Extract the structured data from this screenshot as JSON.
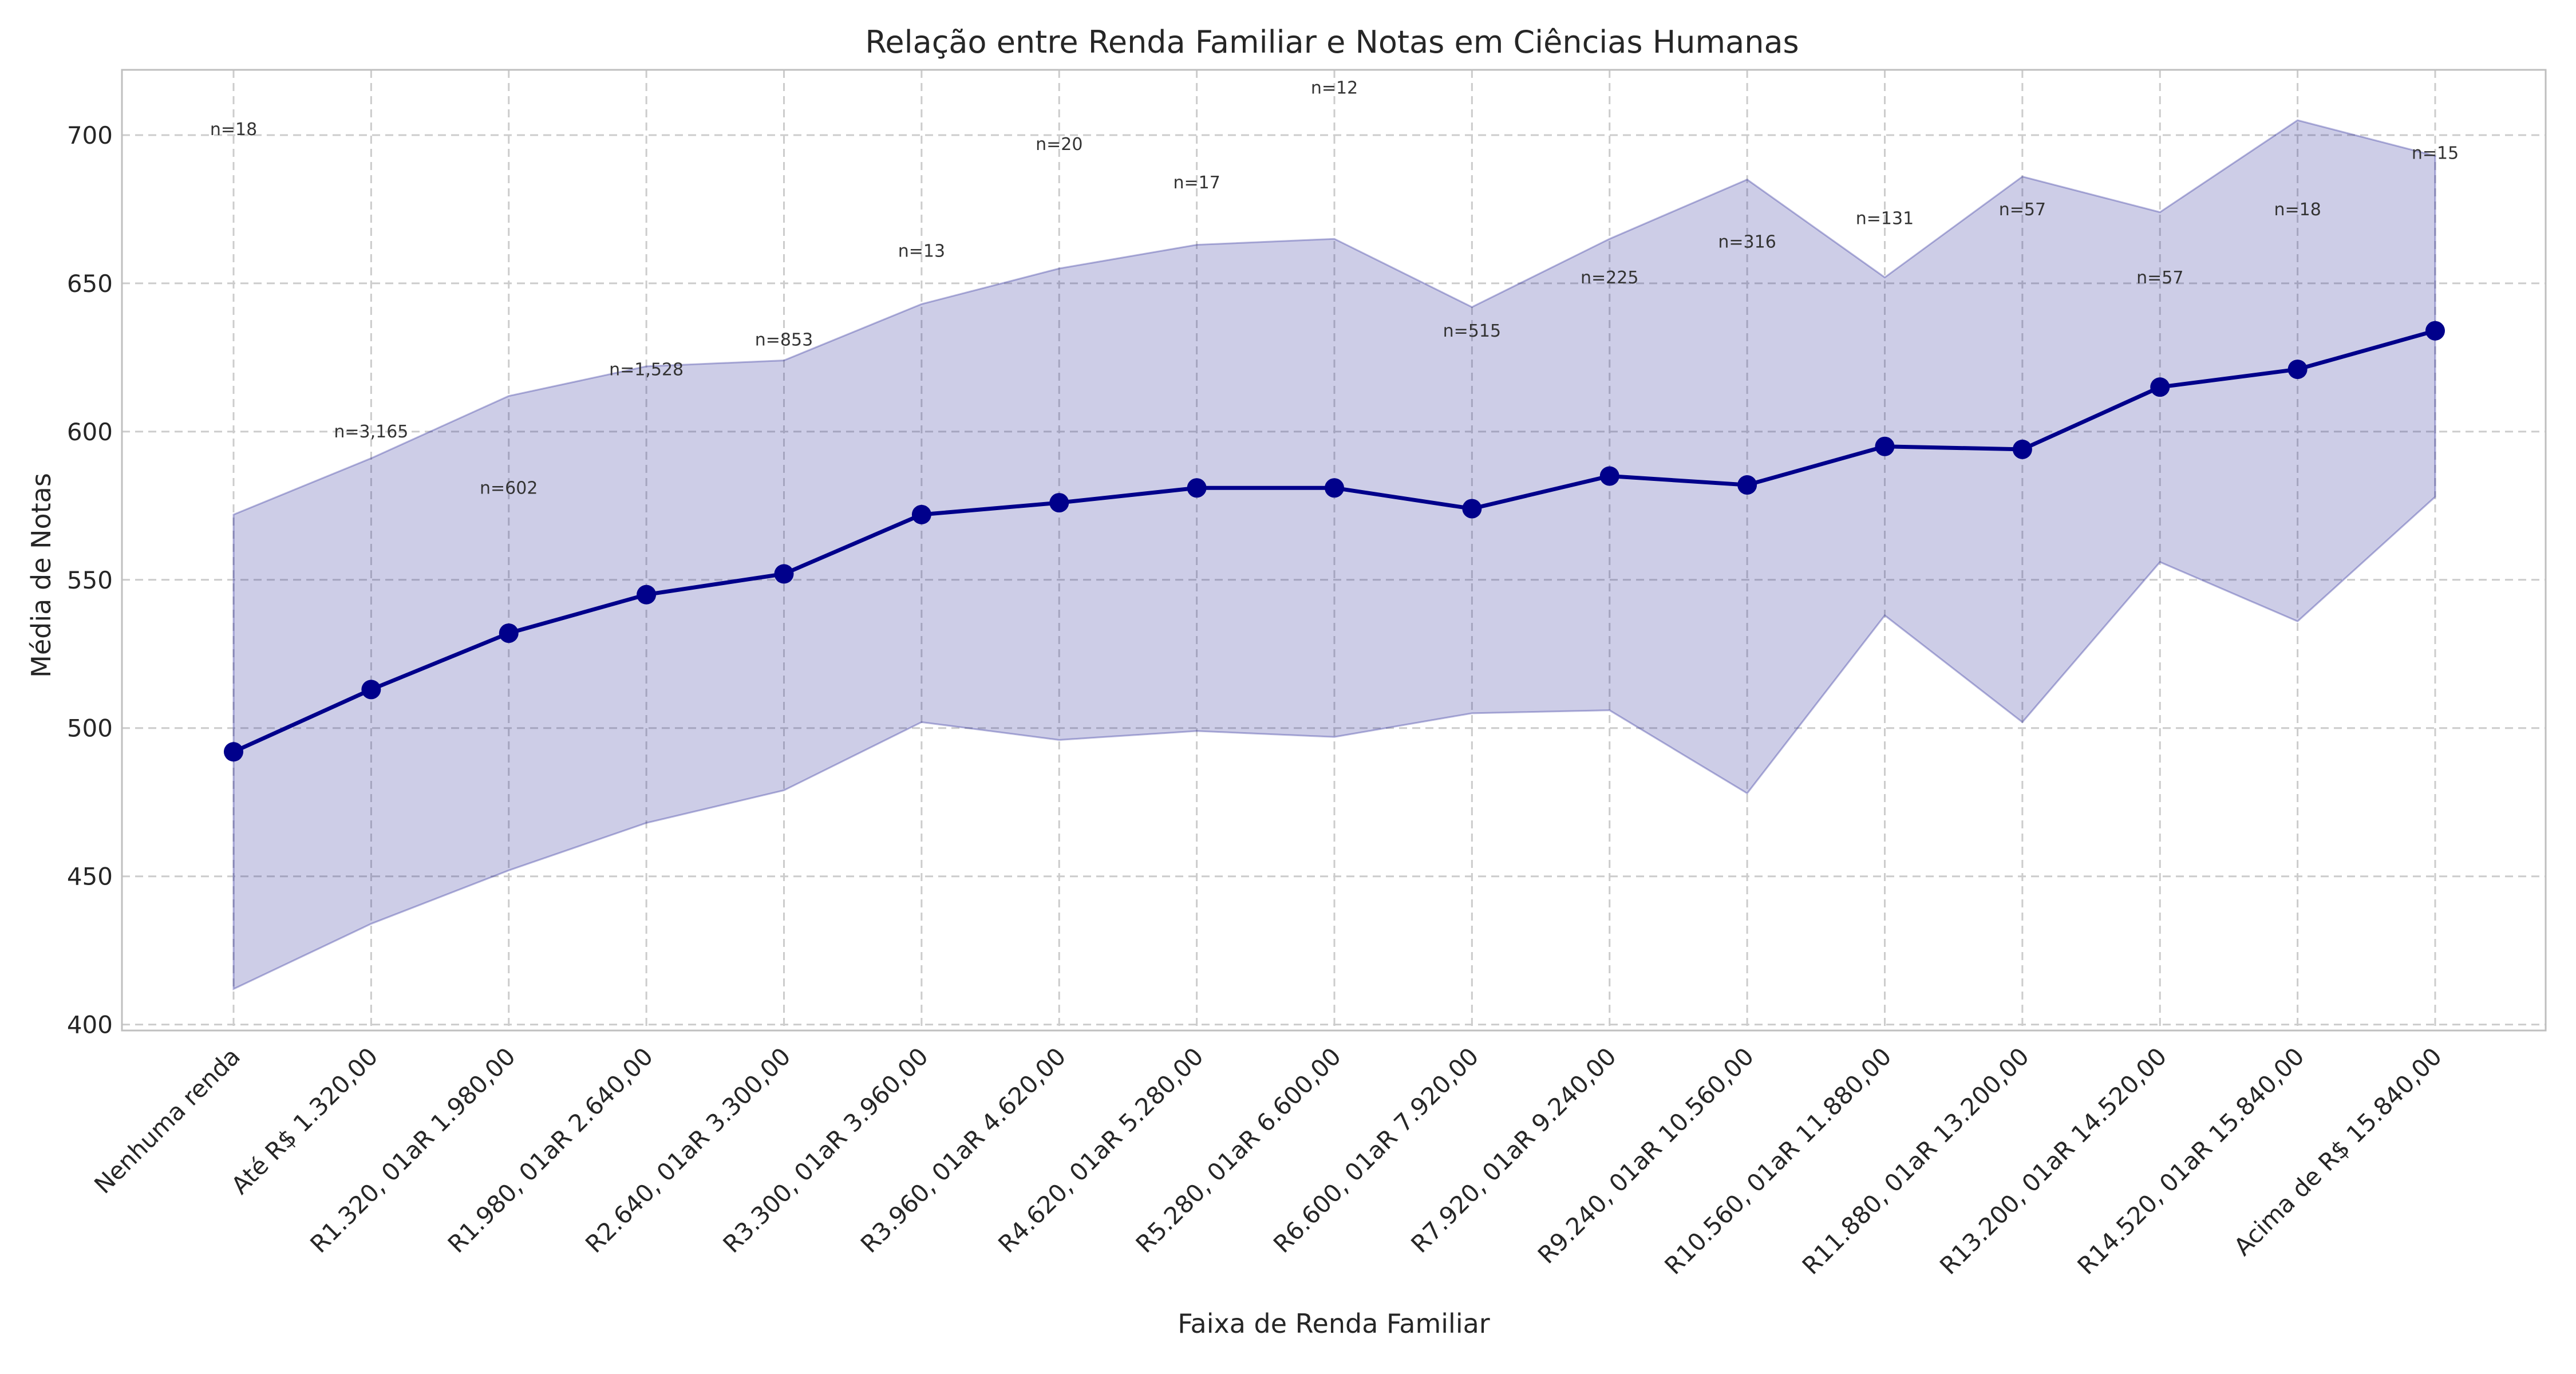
{
  "chart_data": {
    "type": "line",
    "title": "Relação entre Renda Familiar e Notas em Ciências Humanas",
    "xlabel": "Faixa de Renda Familiar",
    "ylabel": "Média de Notas",
    "ylim": [
      398,
      722
    ],
    "yticks": [
      400,
      450,
      500,
      550,
      600,
      650,
      700
    ],
    "grid": true,
    "colors": {
      "line": "#00008b",
      "band": "#1c1c93"
    },
    "categories": [
      "Nenhuma renda",
      "Até R$ 1.320,00",
      "R1.320, 01aR 1.980,00",
      "R1.980, 01aR 2.640,00",
      "R2.640, 01aR 3.300,00",
      "R3.300, 01aR 3.960,00",
      "R3.960, 01aR 4.620,00",
      "R4.620, 01aR 5.280,00",
      "R5.280, 01aR 6.600,00",
      "R6.600, 01aR 7.920,00",
      "R7.920, 01aR 9.240,00",
      "R9.240, 01aR 10.560,00",
      "R10.560, 01aR 11.880,00",
      "R11.880, 01aR 13.200,00",
      "R13.200, 01aR 14.520,00",
      "R14.520, 01aR 15.840,00",
      "Acima de R$ 15.840,00"
    ],
    "mean": [
      492,
      513,
      532,
      545,
      552,
      572,
      576,
      581,
      581,
      574,
      585,
      582,
      595,
      594,
      615,
      621,
      634
    ],
    "band_upper": [
      572,
      591,
      612,
      622,
      624,
      643,
      655,
      663,
      665,
      642,
      665,
      685,
      652,
      686,
      674,
      705,
      693
    ],
    "band_lower": [
      412,
      434,
      452,
      468,
      479,
      502,
      496,
      499,
      497,
      505,
      506,
      478,
      538,
      502,
      556,
      536,
      578
    ],
    "annotations": [
      {
        "text": "n=18",
        "y": 700
      },
      {
        "text": "n=3,165",
        "y": 598
      },
      {
        "text": "n=602",
        "y": 579
      },
      {
        "text": "n=1,528",
        "y": 619
      },
      {
        "text": "n=853",
        "y": 629
      },
      {
        "text": "n=13",
        "y": 659
      },
      {
        "text": "n=20",
        "y": 695
      },
      {
        "text": "n=17",
        "y": 682
      },
      {
        "text": "n=12",
        "y": 714
      },
      {
        "text": "n=515",
        "y": 632
      },
      {
        "text": "n=225",
        "y": 650
      },
      {
        "text": "n=316",
        "y": 662
      },
      {
        "text": "n=131",
        "y": 670
      },
      {
        "text": "n=57",
        "y": 673
      },
      {
        "text": "n=57",
        "y": 650
      },
      {
        "text": "n=18",
        "y": 673
      },
      {
        "text": "n=15",
        "y": 692
      }
    ]
  }
}
